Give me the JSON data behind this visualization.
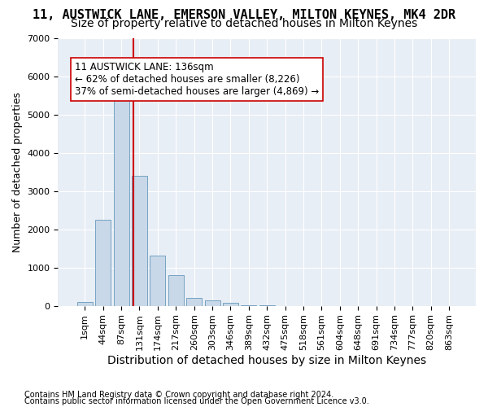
{
  "title": "11, AUSTWICK LANE, EMERSON VALLEY, MILTON KEYNES, MK4 2DR",
  "subtitle": "Size of property relative to detached houses in Milton Keynes",
  "xlabel": "Distribution of detached houses by size in Milton Keynes",
  "ylabel": "Number of detached properties",
  "footnote1": "Contains HM Land Registry data © Crown copyright and database right 2024.",
  "footnote2": "Contains public sector information licensed under the Open Government Licence v3.0.",
  "bin_labels": [
    "1sqm",
    "44sqm",
    "87sqm",
    "131sqm",
    "174sqm",
    "217sqm",
    "260sqm",
    "303sqm",
    "346sqm",
    "389sqm",
    "432sqm",
    "475sqm",
    "518sqm",
    "561sqm",
    "604sqm",
    "648sqm",
    "691sqm",
    "734sqm",
    "777sqm",
    "820sqm",
    "863sqm"
  ],
  "bar_values": [
    100,
    2250,
    5400,
    3400,
    1300,
    800,
    200,
    130,
    70,
    20,
    5,
    2,
    1,
    0,
    0,
    0,
    0,
    0,
    0,
    0,
    0
  ],
  "bar_color": "#c8d8e8",
  "bar_edge_color": "#6699bb",
  "vline_x": 2.65,
  "vline_color": "#cc0000",
  "annotation_text": "11 AUSTWICK LANE: 136sqm\n← 62% of detached houses are smaller (8,226)\n37% of semi-detached houses are larger (4,869) →",
  "annotation_box_color": "#ffffff",
  "annotation_box_edge": "#cc0000",
  "ylim": [
    0,
    7000
  ],
  "yticks": [
    0,
    1000,
    2000,
    3000,
    4000,
    5000,
    6000,
    7000
  ],
  "background_color": "#e8eef5",
  "fig_background": "#ffffff",
  "title_fontsize": 11,
  "subtitle_fontsize": 10,
  "axis_label_fontsize": 9,
  "tick_fontsize": 8,
  "annotation_fontsize": 8.5
}
